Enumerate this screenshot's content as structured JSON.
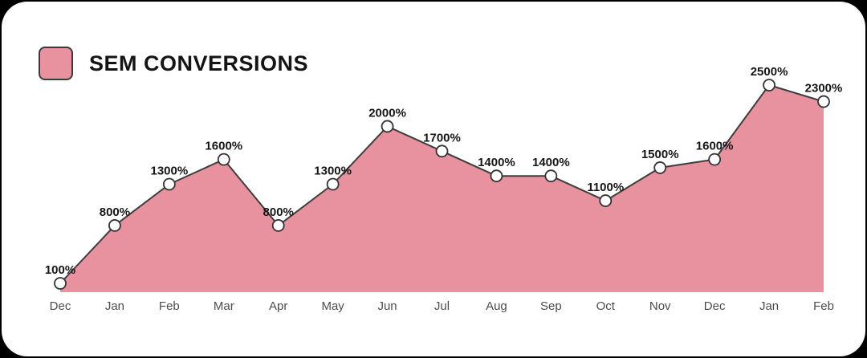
{
  "page": {
    "background_color": "#000000",
    "card_background_color": "#ffffff"
  },
  "legend": {
    "label": "SEM CONVERSIONS",
    "swatch_color": "#e8929f",
    "swatch_border_color": "#3a3a3a"
  },
  "chart_data": {
    "type": "area",
    "title": "SEM CONVERSIONS",
    "categories": [
      "Dec",
      "Jan",
      "Feb",
      "Mar",
      "Apr",
      "May",
      "Jun",
      "Jul",
      "Aug",
      "Sep",
      "Oct",
      "Nov",
      "Dec",
      "Jan",
      "Feb"
    ],
    "values": [
      100,
      800,
      1300,
      1600,
      800,
      1300,
      2000,
      1700,
      1400,
      1400,
      1100,
      1500,
      1600,
      2500,
      2300
    ],
    "value_labels": [
      "100%",
      "800%",
      "1300%",
      "1600%",
      "800%",
      "1300%",
      "2000%",
      "1700%",
      "1400%",
      "1400%",
      "1100%",
      "1500%",
      "1600%",
      "2500%",
      "2300%"
    ],
    "unit": "%",
    "xlabel": "",
    "ylabel": "",
    "ylim": [
      0,
      2600
    ],
    "grid": false,
    "legend_position": "top-left",
    "fill_color": "#e8929f",
    "line_color": "#3d3d3d",
    "marker_fill_color": "#ffffff",
    "marker_stroke_color": "#333333",
    "value_label_color": "#161616",
    "axis_label_color": "#4d4d4d"
  }
}
